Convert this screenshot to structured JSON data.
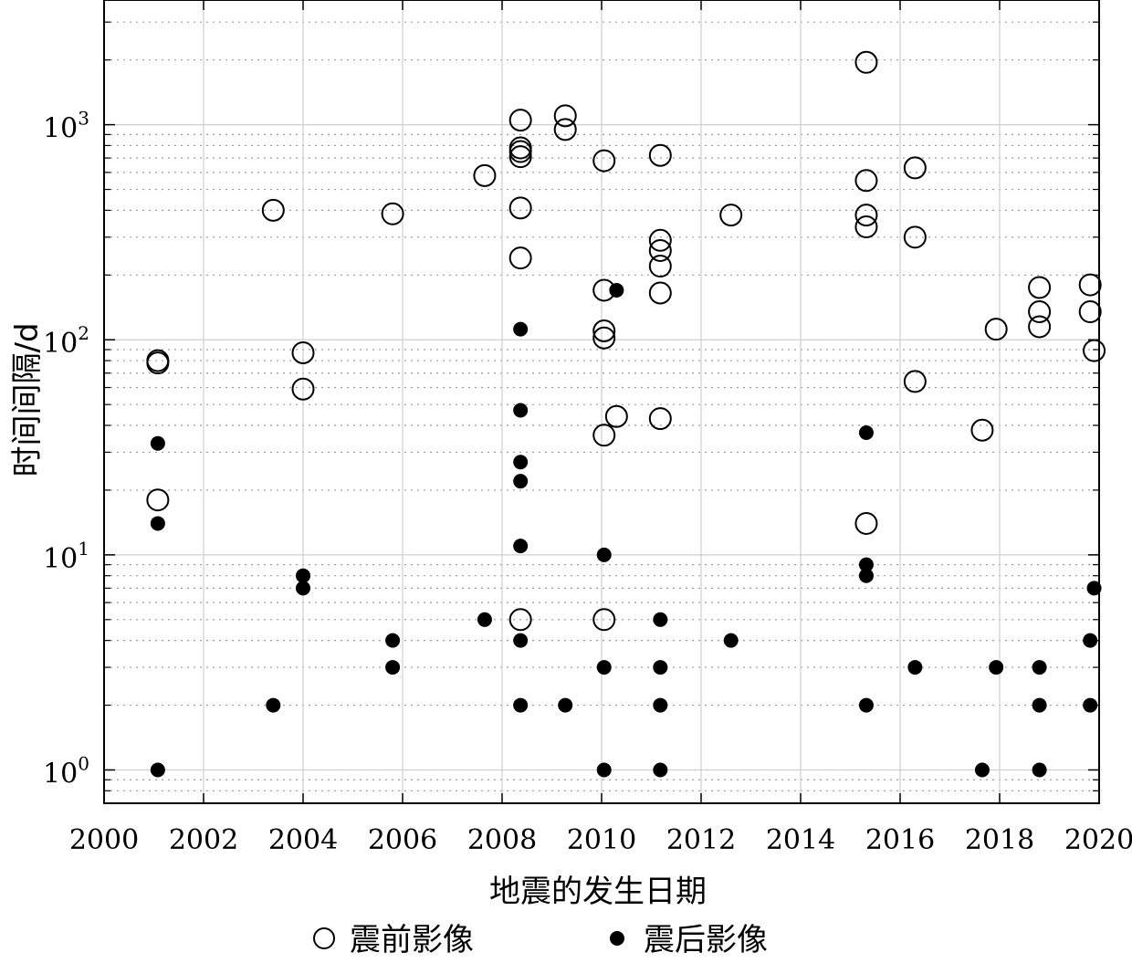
{
  "chart_data": {
    "type": "scatter",
    "xlabel": "地震的发生日期",
    "ylabel": "时间间隔/d",
    "x_scale": "linear",
    "y_scale": "log",
    "xlim": [
      2000,
      2020
    ],
    "ylim": [
      0.7,
      3800
    ],
    "x_ticks": [
      {
        "value": 2000,
        "label": "2000"
      },
      {
        "value": 2002,
        "label": "2002"
      },
      {
        "value": 2004,
        "label": "2004"
      },
      {
        "value": 2006,
        "label": "2006"
      },
      {
        "value": 2008,
        "label": "2008"
      },
      {
        "value": 2010,
        "label": "2010"
      },
      {
        "value": 2012,
        "label": "2012"
      },
      {
        "value": 2014,
        "label": "2014"
      },
      {
        "value": 2016,
        "label": "2016"
      },
      {
        "value": 2018,
        "label": "2018"
      },
      {
        "value": 2020,
        "label": "2020"
      }
    ],
    "y_ticks": [
      {
        "value": 1,
        "base": "10",
        "exp": "0"
      },
      {
        "value": 10,
        "base": "10",
        "exp": "1"
      },
      {
        "value": 100,
        "base": "10",
        "exp": "2"
      },
      {
        "value": 1000,
        "base": "10",
        "exp": "3"
      }
    ],
    "grid": true,
    "minor_grid": true,
    "legend_position": "bottom",
    "series": [
      {
        "name": "震前影像",
        "marker": "open-circle",
        "color": "#000000",
        "points": [
          {
            "x": 2001.08,
            "y": 80
          },
          {
            "x": 2001.08,
            "y": 78
          },
          {
            "x": 2001.08,
            "y": 18
          },
          {
            "x": 2003.4,
            "y": 400
          },
          {
            "x": 2004.0,
            "y": 87
          },
          {
            "x": 2004.0,
            "y": 59
          },
          {
            "x": 2005.8,
            "y": 385
          },
          {
            "x": 2007.65,
            "y": 580
          },
          {
            "x": 2008.37,
            "y": 1050
          },
          {
            "x": 2008.37,
            "y": 780
          },
          {
            "x": 2008.37,
            "y": 750
          },
          {
            "x": 2008.37,
            "y": 710
          },
          {
            "x": 2008.37,
            "y": 410
          },
          {
            "x": 2008.37,
            "y": 240
          },
          {
            "x": 2008.37,
            "y": 5
          },
          {
            "x": 2009.27,
            "y": 1100
          },
          {
            "x": 2009.27,
            "y": 950
          },
          {
            "x": 2010.05,
            "y": 680
          },
          {
            "x": 2010.05,
            "y": 170
          },
          {
            "x": 2010.05,
            "y": 110
          },
          {
            "x": 2010.05,
            "y": 102
          },
          {
            "x": 2010.05,
            "y": 36
          },
          {
            "x": 2010.05,
            "y": 5
          },
          {
            "x": 2010.3,
            "y": 44
          },
          {
            "x": 2011.18,
            "y": 720
          },
          {
            "x": 2011.18,
            "y": 290
          },
          {
            "x": 2011.18,
            "y": 260
          },
          {
            "x": 2011.18,
            "y": 220
          },
          {
            "x": 2011.18,
            "y": 165
          },
          {
            "x": 2011.18,
            "y": 43
          },
          {
            "x": 2012.6,
            "y": 380
          },
          {
            "x": 2015.32,
            "y": 1950
          },
          {
            "x": 2015.32,
            "y": 550
          },
          {
            "x": 2015.32,
            "y": 380
          },
          {
            "x": 2015.32,
            "y": 335
          },
          {
            "x": 2015.32,
            "y": 14
          },
          {
            "x": 2016.3,
            "y": 630
          },
          {
            "x": 2016.3,
            "y": 300
          },
          {
            "x": 2016.3,
            "y": 64
          },
          {
            "x": 2017.65,
            "y": 38
          },
          {
            "x": 2017.93,
            "y": 112
          },
          {
            "x": 2018.8,
            "y": 175
          },
          {
            "x": 2018.8,
            "y": 135
          },
          {
            "x": 2018.8,
            "y": 115
          },
          {
            "x": 2019.82,
            "y": 180
          },
          {
            "x": 2019.82,
            "y": 135
          },
          {
            "x": 2019.9,
            "y": 89
          }
        ]
      },
      {
        "name": "震后影像",
        "marker": "filled-circle",
        "color": "#000000",
        "points": [
          {
            "x": 2001.08,
            "y": 33
          },
          {
            "x": 2001.08,
            "y": 14
          },
          {
            "x": 2001.08,
            "y": 1
          },
          {
            "x": 2003.4,
            "y": 2
          },
          {
            "x": 2004.0,
            "y": 8
          },
          {
            "x": 2004.0,
            "y": 7
          },
          {
            "x": 2005.8,
            "y": 4
          },
          {
            "x": 2005.8,
            "y": 3
          },
          {
            "x": 2007.65,
            "y": 5
          },
          {
            "x": 2008.37,
            "y": 112
          },
          {
            "x": 2008.37,
            "y": 47
          },
          {
            "x": 2008.37,
            "y": 27
          },
          {
            "x": 2008.37,
            "y": 22
          },
          {
            "x": 2008.37,
            "y": 11
          },
          {
            "x": 2008.37,
            "y": 4
          },
          {
            "x": 2008.37,
            "y": 2
          },
          {
            "x": 2009.27,
            "y": 2
          },
          {
            "x": 2010.05,
            "y": 10
          },
          {
            "x": 2010.05,
            "y": 3
          },
          {
            "x": 2010.05,
            "y": 1
          },
          {
            "x": 2010.3,
            "y": 170
          },
          {
            "x": 2011.18,
            "y": 5
          },
          {
            "x": 2011.18,
            "y": 3
          },
          {
            "x": 2011.18,
            "y": 2
          },
          {
            "x": 2011.18,
            "y": 1
          },
          {
            "x": 2012.6,
            "y": 4
          },
          {
            "x": 2015.32,
            "y": 37
          },
          {
            "x": 2015.32,
            "y": 9
          },
          {
            "x": 2015.32,
            "y": 8
          },
          {
            "x": 2015.32,
            "y": 2
          },
          {
            "x": 2016.3,
            "y": 3
          },
          {
            "x": 2017.65,
            "y": 1
          },
          {
            "x": 2017.93,
            "y": 3
          },
          {
            "x": 2018.8,
            "y": 3
          },
          {
            "x": 2018.8,
            "y": 2
          },
          {
            "x": 2018.8,
            "y": 1
          },
          {
            "x": 2019.82,
            "y": 4
          },
          {
            "x": 2019.82,
            "y": 2
          },
          {
            "x": 2019.9,
            "y": 7
          }
        ]
      }
    ]
  }
}
